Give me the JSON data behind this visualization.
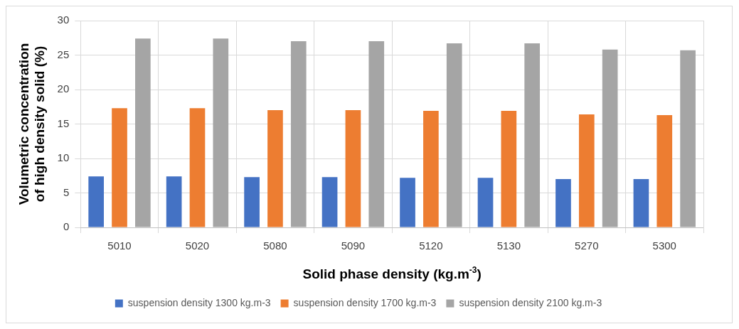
{
  "chart_data": {
    "type": "bar",
    "xlabel": "Solid phase density (kg.m$^{-3}$)",
    "ylabel": "Volumetric concentration of high density solid (%)",
    "categories": [
      "5010",
      "5020",
      "5080",
      "5090",
      "5120",
      "5130",
      "5270",
      "5300"
    ],
    "series": [
      {
        "name": "suspension density 1300 kg.m-3",
        "color": "#4472c4",
        "values": [
          7.4,
          7.4,
          7.3,
          7.3,
          7.2,
          7.2,
          7.0,
          7.0
        ]
      },
      {
        "name": "suspension density 1700 kg.m-3",
        "color": "#ed7d31",
        "values": [
          17.3,
          17.3,
          17.0,
          17.0,
          16.9,
          16.9,
          16.4,
          16.3
        ]
      },
      {
        "name": "suspension density 2100 kg.m-3",
        "color": "#a5a5a5",
        "values": [
          27.4,
          27.4,
          27.0,
          27.0,
          26.7,
          26.7,
          25.8,
          25.7
        ]
      }
    ],
    "ylim": [
      0,
      30
    ],
    "yticks": [
      0,
      5,
      10,
      15,
      20,
      25,
      30
    ],
    "grid": true,
    "legend": "bottom"
  }
}
